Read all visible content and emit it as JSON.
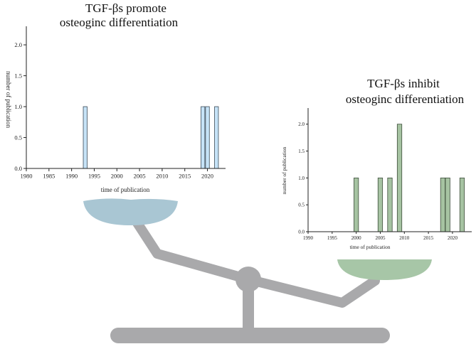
{
  "chart_data": [
    {
      "type": "bar",
      "title_lines": [
        "TGF-βs promote",
        "osteoginc differentiation"
      ],
      "xlabel": "time of publication",
      "ylabel": "number of publication",
      "xlim": [
        1980,
        2024
      ],
      "ylim": [
        0,
        2.3
      ],
      "x_ticks": [
        1980,
        1985,
        1990,
        1995,
        2000,
        2005,
        2010,
        2015,
        2020
      ],
      "x_tick_labels": [
        "1980",
        "1985",
        "1990",
        "1995",
        "2000",
        "2005",
        "2010",
        "2015",
        "2020"
      ],
      "y_ticks": [
        0,
        0.5,
        1.0,
        1.5,
        2.0
      ],
      "y_tick_labels": [
        "0.0",
        "0.5",
        "1.0",
        "1.5",
        "2.0"
      ],
      "x": [
        1993,
        2019,
        2020,
        2022
      ],
      "values": [
        1,
        1,
        1,
        1
      ],
      "bar_color": "#c6e3f7",
      "bar_edge": "#3a4a58"
    },
    {
      "type": "bar",
      "title_lines": [
        "TGF-βs inhibit",
        "osteoginc differentiation"
      ],
      "xlabel": "time of publication",
      "ylabel": "number of publication",
      "xlim": [
        1990,
        2024
      ],
      "ylim": [
        0,
        2.3
      ],
      "x_ticks": [
        1990,
        1995,
        2000,
        2005,
        2010,
        2015,
        2020
      ],
      "x_tick_labels": [
        "1990",
        "1995",
        "2000",
        "2005",
        "2010",
        "2015",
        "2020"
      ],
      "y_ticks": [
        0,
        0.5,
        1.0,
        1.5,
        2.0
      ],
      "y_tick_labels": [
        "0.0",
        "0.5",
        "1.0",
        "1.5",
        "2.0"
      ],
      "x": [
        2000,
        2005,
        2007,
        2009,
        2018,
        2019,
        2022
      ],
      "values": [
        1,
        1,
        1,
        2,
        1,
        1,
        1
      ],
      "bar_color": "#a6c3a2",
      "bar_edge": "#3d4d3b"
    }
  ],
  "scale_colors": {
    "beam": "#a9a9ab",
    "left_pan": "#a9c6d3",
    "right_pan": "#a7c6a7"
  }
}
